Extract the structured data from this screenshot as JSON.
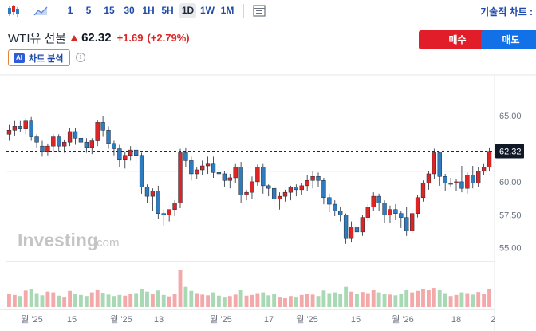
{
  "toolbar": {
    "timeframes": [
      "1",
      "5",
      "15",
      "30",
      "1H",
      "5H",
      "1D",
      "1W",
      "1M"
    ],
    "active_timeframe": "1D",
    "tools_label": "기술적 차트 :"
  },
  "instrument": {
    "name": "WTI유 선물",
    "price": "62.32",
    "change": "+1.69",
    "change_pct": "(+2.79%)"
  },
  "actions": {
    "buy_label": "매수",
    "sell_label": "매도"
  },
  "ai": {
    "badge": "AI",
    "label": "차트 분석"
  },
  "watermark": "Investing",
  "watermark_suffix": ".com",
  "colors": {
    "up": "#dc2626",
    "down": "#2e7bbf",
    "vol_up": "#f3a9a9",
    "vol_down": "#a8d8b4",
    "accent": "#1f4aa8"
  },
  "chart_data": {
    "type": "candlestick",
    "y_ticks": [
      "65.00",
      "60.00",
      "57.50",
      "55.00"
    ],
    "y_tick_values": [
      65,
      60,
      57.5,
      55
    ],
    "x_labels": [
      "월 '25",
      "15",
      "월 '25",
      "13",
      "월 '25",
      "17",
      "월 '25",
      "15",
      "월 '26",
      "18",
      "2"
    ],
    "last_price_label": "62.32",
    "last_price": 62.32,
    "reference_level": 60.8,
    "ylim": [
      54.2,
      67.6
    ],
    "candles": [
      [
        63.6,
        64.3,
        63.2,
        63.1,
        63.9
      ],
      [
        63.9,
        64.6,
        63.7,
        63.5,
        64.2
      ],
      [
        64.2,
        64.6,
        64.1,
        63.8,
        64.0
      ],
      [
        64.0,
        64.8,
        63.8,
        63.6,
        64.6
      ],
      [
        64.6,
        64.9,
        63.3,
        63.1,
        63.4
      ],
      [
        63.4,
        63.6,
        62.8,
        62.6,
        63.0
      ],
      [
        62.7,
        63.1,
        62.1,
        61.9,
        62.3
      ],
      [
        62.3,
        62.9,
        62.2,
        62.0,
        62.7
      ],
      [
        62.7,
        63.6,
        62.6,
        62.3,
        63.4
      ],
      [
        63.4,
        63.6,
        62.5,
        62.3,
        62.7
      ],
      [
        62.7,
        63.2,
        62.4,
        62.2,
        63.0
      ],
      [
        63.0,
        64.1,
        62.9,
        62.7,
        63.8
      ],
      [
        63.8,
        64.1,
        63.0,
        62.8,
        63.3
      ],
      [
        63.3,
        63.5,
        62.8,
        62.6,
        63.0
      ],
      [
        63.0,
        63.3,
        62.4,
        62.2,
        62.6
      ],
      [
        62.6,
        63.3,
        62.3,
        62.1,
        63.1
      ],
      [
        63.1,
        64.7,
        62.9,
        62.7,
        64.5
      ],
      [
        64.5,
        65.0,
        63.6,
        63.4,
        63.9
      ],
      [
        63.9,
        64.2,
        62.7,
        62.5,
        62.9
      ],
      [
        62.9,
        63.1,
        62.2,
        62.0,
        62.5
      ],
      [
        62.5,
        62.8,
        61.3,
        61.1,
        61.7
      ],
      [
        61.7,
        62.3,
        61.2,
        61.0,
        62.0
      ],
      [
        62.0,
        62.7,
        61.8,
        61.6,
        62.4
      ],
      [
        62.4,
        62.8,
        61.6,
        61.4,
        62.0
      ],
      [
        62.0,
        62.2,
        59.3,
        59.1,
        59.6
      ],
      [
        59.6,
        59.8,
        58.6,
        58.4,
        58.9
      ],
      [
        58.9,
        59.5,
        58.0,
        57.8,
        59.3
      ],
      [
        59.3,
        59.7,
        57.4,
        57.2,
        57.6
      ],
      [
        57.6,
        57.9,
        56.9,
        56.7,
        57.5
      ],
      [
        57.5,
        57.9,
        57.2,
        57.0,
        57.9
      ],
      [
        57.9,
        58.6,
        57.6,
        57.4,
        58.4
      ],
      [
        58.4,
        62.5,
        58.3,
        58.0,
        62.2
      ],
      [
        62.2,
        62.6,
        61.3,
        61.1,
        61.6
      ],
      [
        61.6,
        61.9,
        60.3,
        60.1,
        60.6
      ],
      [
        60.6,
        61.1,
        60.4,
        60.2,
        60.9
      ],
      [
        60.9,
        61.6,
        60.7,
        60.5,
        61.2
      ],
      [
        61.2,
        61.9,
        60.8,
        60.6,
        61.4
      ],
      [
        61.4,
        61.9,
        60.5,
        60.3,
        60.7
      ],
      [
        60.7,
        61.0,
        60.2,
        60.0,
        60.6
      ],
      [
        60.6,
        60.8,
        59.8,
        59.6,
        60.1
      ],
      [
        60.1,
        60.6,
        59.7,
        59.5,
        60.3
      ],
      [
        60.3,
        61.4,
        60.1,
        59.9,
        61.1
      ],
      [
        61.1,
        61.5,
        58.6,
        58.4,
        59.0
      ],
      [
        59.0,
        59.4,
        58.8,
        58.6,
        59.2
      ],
      [
        59.2,
        60.4,
        58.9,
        58.7,
        60.0
      ],
      [
        60.0,
        61.3,
        59.9,
        59.7,
        61.1
      ],
      [
        61.1,
        61.4,
        59.3,
        59.1,
        59.7
      ],
      [
        59.7,
        59.8,
        59.1,
        58.9,
        59.5
      ],
      [
        59.5,
        59.7,
        58.4,
        58.2,
        58.7
      ],
      [
        58.7,
        59.2,
        58.1,
        57.9,
        58.9
      ],
      [
        58.9,
        59.4,
        58.7,
        58.5,
        59.2
      ],
      [
        59.2,
        59.7,
        58.8,
        58.6,
        59.6
      ],
      [
        59.6,
        59.8,
        59.1,
        58.9,
        59.4
      ],
      [
        59.4,
        59.9,
        59.2,
        59.0,
        59.7
      ],
      [
        59.7,
        60.5,
        59.5,
        59.3,
        60.1
      ],
      [
        60.1,
        60.8,
        59.7,
        59.5,
        60.4
      ],
      [
        60.4,
        60.7,
        59.8,
        59.6,
        60.1
      ],
      [
        60.1,
        60.3,
        58.5,
        58.3,
        58.8
      ],
      [
        58.8,
        59.1,
        57.9,
        57.7,
        58.3
      ],
      [
        58.3,
        58.6,
        57.6,
        57.4,
        57.8
      ],
      [
        57.8,
        58.1,
        57.2,
        57.0,
        57.5
      ],
      [
        57.5,
        57.6,
        55.5,
        55.3,
        55.7
      ],
      [
        55.7,
        57.0,
        55.6,
        55.4,
        56.6
      ],
      [
        56.6,
        56.9,
        55.9,
        55.7,
        56.2
      ],
      [
        56.2,
        57.5,
        56.1,
        55.9,
        57.3
      ],
      [
        57.3,
        58.3,
        57.2,
        57.0,
        58.1
      ],
      [
        58.1,
        59.2,
        58.0,
        57.8,
        58.9
      ],
      [
        58.9,
        59.1,
        58.0,
        57.8,
        58.4
      ],
      [
        58.4,
        58.6,
        57.1,
        56.9,
        57.5
      ],
      [
        57.5,
        58.2,
        57.1,
        56.9,
        57.9
      ],
      [
        57.9,
        58.3,
        57.3,
        57.1,
        57.6
      ],
      [
        57.6,
        57.8,
        56.7,
        56.5,
        57.3
      ],
      [
        57.3,
        58.1,
        56.1,
        55.9,
        56.3
      ],
      [
        56.3,
        57.9,
        56.2,
        56.0,
        57.6
      ],
      [
        57.6,
        59.0,
        57.5,
        57.3,
        58.8
      ],
      [
        58.8,
        60.1,
        58.7,
        58.5,
        59.9
      ],
      [
        59.9,
        60.8,
        59.6,
        59.4,
        60.6
      ],
      [
        60.6,
        62.5,
        60.4,
        60.2,
        62.2
      ],
      [
        62.2,
        62.3,
        59.9,
        59.7,
        60.4
      ],
      [
        60.4,
        60.6,
        59.5,
        59.3,
        59.9
      ],
      [
        59.9,
        60.3,
        59.8,
        59.6,
        59.9
      ],
      [
        59.9,
        60.2,
        59.5,
        59.3,
        60.0
      ],
      [
        60.0,
        61.2,
        59.4,
        59.2,
        59.5
      ],
      [
        59.5,
        60.7,
        59.3,
        59.1,
        60.5
      ],
      [
        60.5,
        61.2,
        59.7,
        59.5,
        59.9
      ],
      [
        59.9,
        61.1,
        59.8,
        59.6,
        60.8
      ],
      [
        60.8,
        61.4,
        60.7,
        60.5,
        61.1
      ],
      [
        61.1,
        62.6,
        61.0,
        60.8,
        62.3
      ]
    ],
    "volumes": [
      0.35,
      0.33,
      0.3,
      0.45,
      0.5,
      0.38,
      0.32,
      0.42,
      0.4,
      0.31,
      0.28,
      0.44,
      0.36,
      0.33,
      0.3,
      0.4,
      0.48,
      0.39,
      0.34,
      0.3,
      0.33,
      0.31,
      0.35,
      0.38,
      0.5,
      0.42,
      0.36,
      0.45,
      0.33,
      0.29,
      0.36,
      1.0,
      0.55,
      0.44,
      0.38,
      0.34,
      0.32,
      0.4,
      0.31,
      0.28,
      0.3,
      0.34,
      0.46,
      0.31,
      0.33,
      0.38,
      0.4,
      0.32,
      0.36,
      0.28,
      0.25,
      0.3,
      0.28,
      0.33,
      0.36,
      0.34,
      0.3,
      0.45,
      0.38,
      0.4,
      0.35,
      0.55,
      0.42,
      0.36,
      0.41,
      0.38,
      0.46,
      0.4,
      0.36,
      0.34,
      0.32,
      0.37,
      0.48,
      0.4,
      0.44,
      0.5,
      0.46,
      0.52,
      0.47,
      0.38,
      0.3,
      0.33,
      0.4,
      0.38,
      0.34,
      0.41,
      0.36,
      0.5
    ]
  }
}
